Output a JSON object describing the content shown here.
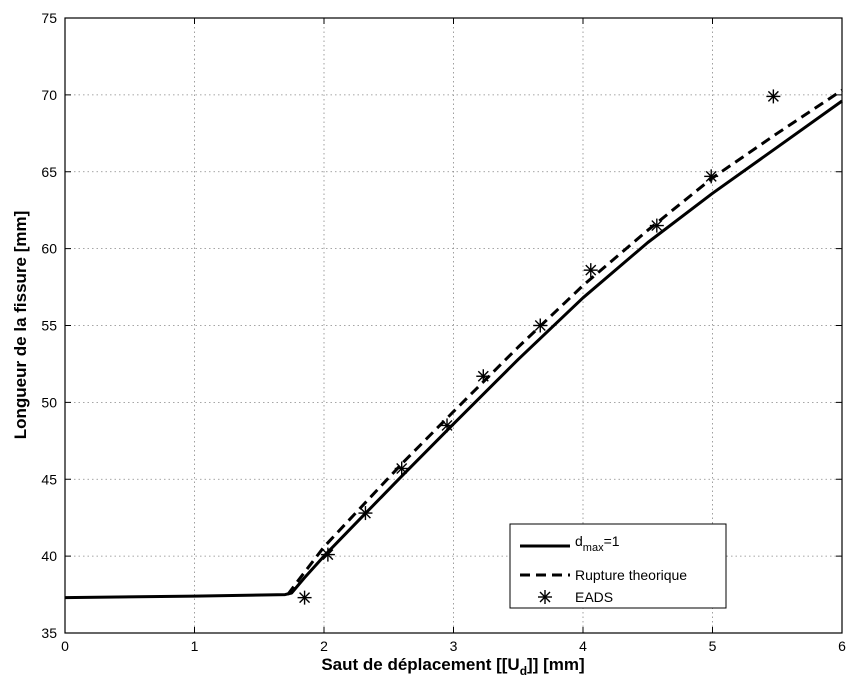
{
  "chart_data": {
    "type": "line",
    "title": "",
    "xlabel": "Saut de déplacement [[U",
    "xlabel_sub": "d",
    "xlabel_tail": "]] [mm]",
    "ylabel": "Longueur de la fissure [mm]",
    "xlim": [
      0,
      6
    ],
    "ylim": [
      35,
      75
    ],
    "xticks": [
      0,
      1,
      2,
      3,
      4,
      5,
      6
    ],
    "yticks": [
      35,
      40,
      45,
      50,
      55,
      60,
      65,
      70,
      75
    ],
    "grid": true,
    "legend_position": "bottom-right",
    "series": [
      {
        "name": "d",
        "name_sub": "max",
        "name_tail": "=1",
        "style": "solid",
        "color": "#000000",
        "x": [
          0,
          1.0,
          1.7,
          1.75,
          1.85,
          2.0,
          2.3,
          2.6,
          3.0,
          3.5,
          4.0,
          4.5,
          5.0,
          5.5,
          6.0
        ],
        "y": [
          37.3,
          37.4,
          37.5,
          37.6,
          38.6,
          40.0,
          42.6,
          45.2,
          48.6,
          52.8,
          56.8,
          60.4,
          63.6,
          66.6,
          69.6
        ]
      },
      {
        "name": "Rupture theorique",
        "style": "dashed",
        "color": "#000000",
        "x": [
          1.72,
          1.8,
          2.0,
          2.3,
          2.6,
          3.0,
          3.5,
          4.0,
          4.5,
          5.0,
          5.5,
          6.0
        ],
        "y": [
          37.5,
          38.4,
          40.6,
          43.3,
          46.0,
          49.4,
          53.6,
          57.6,
          61.2,
          64.6,
          67.5,
          70.3
        ]
      },
      {
        "name": "EADS",
        "style": "markers",
        "marker": "asterisk",
        "color": "#000000",
        "x": [
          1.85,
          2.03,
          2.32,
          2.6,
          2.95,
          3.23,
          3.67,
          4.06,
          4.57,
          4.99,
          5.47
        ],
        "y": [
          37.3,
          40.1,
          42.8,
          45.7,
          48.5,
          51.7,
          55.0,
          58.6,
          61.5,
          64.7,
          69.9
        ]
      }
    ]
  }
}
